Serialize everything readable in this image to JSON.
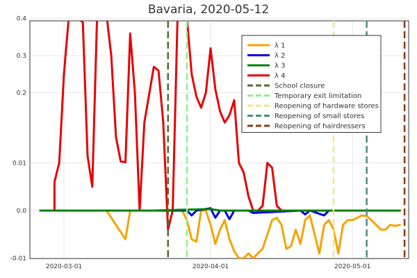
{
  "chart_data": {
    "type": "line",
    "title": "Bavaria, 2020-05-12",
    "xlabel": "",
    "ylabel": "",
    "x_range": [
      "2020-02-25",
      "2020-05-12"
    ],
    "x_ticks": [
      {
        "date": "2020-03-01",
        "label": "2020-03-01"
      },
      {
        "date": "2020-04-01",
        "label": "2020-04-01"
      },
      {
        "date": "2020-05-01",
        "label": "2020-05-01"
      }
    ],
    "y_ticks": [
      "-0.01",
      "0.0",
      "0.01",
      "0.2",
      "0.3",
      "0.4"
    ],
    "y_scale": "piecewise (-0.01 to 0.01 linear, 0.01 to 0.4 linear)",
    "grid": true,
    "legend_position": "top-right",
    "series": [
      {
        "name": "λ 1",
        "color": "#f5a300",
        "style": "solid",
        "points": [
          [
            "2020-02-25",
            0.0
          ],
          [
            "2020-02-28",
            0.0
          ],
          [
            "2020-03-01",
            0.0
          ],
          [
            "2020-03-05",
            0.0
          ],
          [
            "2020-03-10",
            0.0
          ],
          [
            "2020-03-14",
            -0.006
          ],
          [
            "2020-03-15",
            0.0
          ],
          [
            "2020-03-18",
            0.0
          ],
          [
            "2020-03-22",
            0.0
          ],
          [
            "2020-03-26",
            0.0
          ],
          [
            "2020-03-27",
            -0.002
          ],
          [
            "2020-03-28",
            -0.006
          ],
          [
            "2020-03-29",
            -0.0065
          ],
          [
            "2020-03-30",
            0.0
          ],
          [
            "2020-03-31",
            0.0
          ],
          [
            "2020-04-01",
            -0.003
          ],
          [
            "2020-04-02",
            -0.007
          ],
          [
            "2020-04-03",
            -0.004
          ],
          [
            "2020-04-04",
            -0.002
          ],
          [
            "2020-04-05",
            -0.006
          ],
          [
            "2020-04-06",
            -0.0085
          ],
          [
            "2020-04-07",
            -0.01
          ],
          [
            "2020-04-08",
            -0.01
          ],
          [
            "2020-04-09",
            -0.009
          ],
          [
            "2020-04-10",
            -0.01
          ],
          [
            "2020-04-12",
            -0.008
          ],
          [
            "2020-04-13",
            -0.005
          ],
          [
            "2020-04-14",
            -0.002
          ],
          [
            "2020-04-15",
            -0.0015
          ],
          [
            "2020-04-16",
            -0.003
          ],
          [
            "2020-04-17",
            -0.008
          ],
          [
            "2020-04-18",
            -0.0075
          ],
          [
            "2020-04-19",
            -0.004
          ],
          [
            "2020-04-20",
            -0.007
          ],
          [
            "2020-04-21",
            -0.002
          ],
          [
            "2020-04-22",
            -0.001
          ],
          [
            "2020-04-23",
            -0.005
          ],
          [
            "2020-04-24",
            -0.009
          ],
          [
            "2020-04-25",
            -0.003
          ],
          [
            "2020-04-26",
            -0.002
          ],
          [
            "2020-04-27",
            -0.004
          ],
          [
            "2020-04-28",
            -0.009
          ],
          [
            "2020-04-29",
            -0.003
          ],
          [
            "2020-04-30",
            -0.002
          ],
          [
            "2020-05-01",
            -0.002
          ],
          [
            "2020-05-02",
            -0.0015
          ],
          [
            "2020-05-03",
            -0.001
          ],
          [
            "2020-05-04",
            -0.0012
          ],
          [
            "2020-05-05",
            -0.002
          ],
          [
            "2020-05-06",
            -0.003
          ],
          [
            "2020-05-07",
            -0.004
          ],
          [
            "2020-05-08",
            -0.004
          ],
          [
            "2020-05-09",
            -0.003
          ],
          [
            "2020-05-10",
            -0.0032
          ],
          [
            "2020-05-11",
            -0.003
          ]
        ]
      },
      {
        "name": "λ 2",
        "color": "#0000e0",
        "style": "solid",
        "points": [
          [
            "2020-02-25",
            0.0
          ],
          [
            "2020-03-27",
            0.0
          ],
          [
            "2020-03-28",
            -0.001
          ],
          [
            "2020-03-29",
            0.0
          ],
          [
            "2020-04-01",
            0.0005
          ],
          [
            "2020-04-02",
            -0.0015
          ],
          [
            "2020-04-03",
            0.0
          ],
          [
            "2020-04-04",
            0.0
          ],
          [
            "2020-04-05",
            -0.0018
          ],
          [
            "2020-04-06",
            0.0
          ],
          [
            "2020-04-09",
            0.0
          ],
          [
            "2020-04-10",
            -0.0005
          ],
          [
            "2020-04-20",
            0.0
          ],
          [
            "2020-04-21",
            -0.0008
          ],
          [
            "2020-04-22",
            0.0
          ],
          [
            "2020-04-25",
            -0.001
          ],
          [
            "2020-04-26",
            0.0
          ],
          [
            "2020-05-11",
            0.0
          ]
        ]
      },
      {
        "name": "λ 3",
        "color": "#008000",
        "style": "solid",
        "points": [
          [
            "2020-02-25",
            0.0
          ],
          [
            "2020-03-10",
            0.0
          ],
          [
            "2020-03-20",
            0.0
          ],
          [
            "2020-03-27",
            0.0002
          ],
          [
            "2020-04-01",
            0.0003
          ],
          [
            "2020-04-03",
            0.0
          ],
          [
            "2020-05-11",
            0.0
          ]
        ]
      },
      {
        "name": "λ 4",
        "color": "#e60000",
        "style": "solid",
        "points": [
          [
            "2020-02-25",
            0.0
          ],
          [
            "2020-02-28",
            0.0
          ],
          [
            "2020-02-28",
            0.006
          ],
          [
            "2020-02-29",
            0.01
          ],
          [
            "2020-03-01",
            0.25
          ],
          [
            "2020-03-02",
            0.4
          ],
          [
            "2020-03-03",
            0.43
          ],
          [
            "2020-03-04",
            0.4
          ],
          [
            "2020-03-05",
            0.39
          ],
          [
            "2020-03-06",
            0.03
          ],
          [
            "2020-03-07",
            0.005
          ],
          [
            "2020-03-08",
            0.4
          ],
          [
            "2020-03-09",
            0.43
          ],
          [
            "2020-03-10",
            0.41
          ],
          [
            "2020-03-11",
            0.3
          ],
          [
            "2020-03-12",
            0.08
          ],
          [
            "2020-03-13",
            0.015
          ],
          [
            "2020-03-14",
            0.013
          ],
          [
            "2020-03-15",
            0.36
          ],
          [
            "2020-03-16",
            0.2
          ],
          [
            "2020-03-17",
            0.0
          ],
          [
            "2020-03-18",
            0.12
          ],
          [
            "2020-03-20",
            0.27
          ],
          [
            "2020-03-21",
            0.26
          ],
          [
            "2020-03-22",
            0.12
          ],
          [
            "2020-03-23",
            -0.004
          ],
          [
            "2020-03-24",
            0.0
          ],
          [
            "2020-03-25",
            0.4
          ],
          [
            "2020-03-26",
            0.42
          ],
          [
            "2020-03-27",
            0.4
          ],
          [
            "2020-03-28",
            0.25
          ],
          [
            "2020-03-29",
            0.19
          ],
          [
            "2020-03-30",
            0.16
          ],
          [
            "2020-03-31",
            0.2
          ],
          [
            "2020-04-01",
            0.32
          ],
          [
            "2020-04-02",
            0.21
          ],
          [
            "2020-04-03",
            0.15
          ],
          [
            "2020-04-04",
            0.12
          ],
          [
            "2020-04-05",
            0.14
          ],
          [
            "2020-04-06",
            0.18
          ],
          [
            "2020-04-07",
            0.01
          ],
          [
            "2020-04-08",
            0.008
          ],
          [
            "2020-04-09",
            0.003
          ],
          [
            "2020-04-10",
            0.0
          ],
          [
            "2020-04-11",
            0.0
          ],
          [
            "2020-04-12",
            0.001
          ],
          [
            "2020-04-13",
            0.01
          ],
          [
            "2020-04-14",
            0.009
          ],
          [
            "2020-04-15",
            0.001
          ],
          [
            "2020-04-16",
            0.0
          ],
          [
            "2020-05-11",
            0.0
          ]
        ]
      }
    ],
    "vlines": [
      {
        "name": "School closure",
        "date": "2020-03-23",
        "color": "#556b2f",
        "style": "dashed"
      },
      {
        "name": "Temporary exit limitation",
        "date": "2020-03-27",
        "color": "#90ee90",
        "style": "dashed"
      },
      {
        "name": "Reopening of hardware stores",
        "date": "2020-04-27",
        "color": "#f0e68c",
        "style": "dashed"
      },
      {
        "name": "Reopening of small stores",
        "date": "2020-05-04",
        "color": "#4a8a84",
        "style": "dashed"
      },
      {
        "name": "Reopening of hairdressers",
        "date": "2020-05-12",
        "color": "#8b3a1a",
        "style": "dashed"
      }
    ]
  }
}
